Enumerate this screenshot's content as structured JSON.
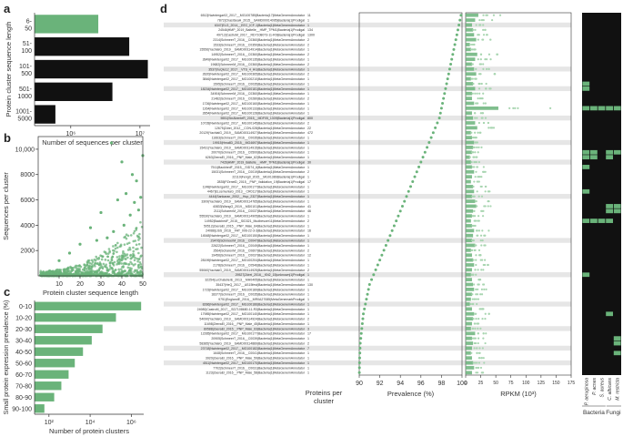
{
  "colors": {
    "green": "#6ab37a",
    "green_light": "#a8d5b0",
    "black": "#111111",
    "band": "#e6e6e6",
    "axis": "#333333",
    "text": "#333333"
  },
  "panels": {
    "a": "a",
    "b": "b",
    "c": "c",
    "d": "d"
  },
  "chart_data": [
    {
      "id": "a",
      "type": "bar",
      "orientation": "horizontal",
      "xscale": "log",
      "categories": [
        "6-50",
        "51-100",
        "101-500",
        "501-1000",
        "1001-5000"
      ],
      "category_lines": [
        [
          "6-",
          "50"
        ],
        [
          "51-",
          "100"
        ],
        [
          "101-",
          "500"
        ],
        [
          "501-",
          "1000"
        ],
        [
          "1001-",
          "5000"
        ]
      ],
      "values": [
        2500000,
        7000000,
        13000000,
        4000000,
        600000
      ],
      "bar_colors": [
        "#6ab37a",
        "#111111",
        "#111111",
        "#111111",
        "#111111"
      ],
      "xlim": [
        300000,
        14000000
      ],
      "xticks": [
        1000000,
        10000000
      ],
      "xtick_labels": [
        "10⁶",
        "10⁷"
      ],
      "xlabel": "Number of sequences per cluster",
      "ylabel": "Protein cluster sequence length"
    },
    {
      "id": "b",
      "type": "scatter",
      "xlim": [
        0,
        50
      ],
      "ylim": [
        0,
        11000
      ],
      "xticks": [
        10,
        20,
        30,
        40,
        50
      ],
      "yticks": [
        2000,
        4000,
        6000,
        8000,
        10000
      ],
      "ytick_labels": [
        "2000",
        "4000",
        "6000",
        "8000",
        "10,000"
      ],
      "xlabel": "Protein cluster sequence length",
      "ylabel": "Sequences per cluster",
      "sample_points": [
        [
          35,
          10500
        ],
        [
          40,
          9000
        ],
        [
          45,
          8000
        ],
        [
          47,
          7500
        ],
        [
          50,
          9500
        ],
        [
          42,
          6500
        ],
        [
          38,
          6000
        ],
        [
          30,
          5000
        ],
        [
          48,
          5200
        ],
        [
          44,
          4800
        ],
        [
          25,
          3800
        ],
        [
          49,
          6200
        ],
        [
          33,
          3000
        ],
        [
          20,
          2500
        ],
        [
          15,
          1800
        ],
        [
          10,
          1200
        ],
        [
          46,
          5800
        ],
        [
          41,
          4000
        ],
        [
          36,
          3500
        ],
        [
          28,
          2800
        ]
      ]
    },
    {
      "id": "c",
      "type": "bar",
      "orientation": "horizontal",
      "xscale": "log",
      "categories": [
        "0-10",
        "10-20",
        "20-30",
        "30-40",
        "40-50",
        "50-60",
        "60-70",
        "70-80",
        "80-90",
        "90-100"
      ],
      "values": [
        3000000,
        180000,
        40000,
        12000,
        4500,
        1800,
        900,
        400,
        180,
        60
      ],
      "xlim": [
        20,
        4000000
      ],
      "xticks": [
        100,
        10000,
        1000000
      ],
      "xtick_labels": [
        "10²",
        "10⁴",
        "10⁶"
      ],
      "xlabel": "Number of protein clusters",
      "ylabel": "Small protein expression prevalence (%)"
    },
    {
      "id": "d",
      "type": "scatter",
      "n_rows": 74,
      "banded_rows": [
        2,
        11,
        15,
        21,
        26,
        30,
        37,
        46,
        53,
        59,
        64,
        68,
        71
      ],
      "prevalence_xlim": [
        90,
        100
      ],
      "prevalence_xticks": [
        90,
        92,
        94,
        96,
        98,
        100
      ],
      "prevalence_label": "Prevalence (%)",
      "rpkm_xlim": [
        0,
        175
      ],
      "rpkm_xticks": [
        0,
        25,
        50,
        75,
        100,
        125,
        150,
        175
      ],
      "rpkm_label": "RPKM (10³)",
      "proteins_label": "Proteins per cluster",
      "proteins_label_lines": [
        "Proteins per",
        "cluster"
      ],
      "species": [
        "P. aeruginosa",
        "P. acnes",
        "S. aureus",
        "C. albicans",
        "M. restricta"
      ],
      "species_groups": [
        "Bacteria",
        "Fungi"
      ],
      "row_labels": [
        "6512|Nwintergar02_2017__MG100785|Bacteria|17|MetaGenemAnnotator",
        "7872|ChasiSeaH_2015__SAMD00014095|Bacteria|1|Prodigal",
        "6347|ELG_2014__EEC_ICF-1|Bacteria|1|MetaGenemAnnotator",
        "24546|HMP_2019_Baltelle__HMP_TPM1|Bacteria|1|Prodigal",
        "49712|CastroM_2017__RD7108073-11-R0|Bacteria|1|Prodigal",
        "2314|SchmeerT_2016__C0360|Bacteria|1|MetaGenemAnnotator",
        "1533|SchmeerT_2016__C0350|Bacteria|1|MetaGenemAnnotator",
        "15556|YachiaiG_2019__SAMD00114914|Bacteria|1|MetaGenemAnnotator",
        "14952|SchmeerT_2016__C0360|Bacteria|1|MetaGenemAnnotator",
        "2849|Nwintergar02_2017__MG100135|Bacteria|1|MetaGenemAnnotator",
        "19682|SchmeerM_2016__C0360|Bacteria|1|MetaGenemAnnotator",
        "3537|XuQie12_2017__VTS_4_HG|Bacteria|1|MetaGenemAnnotator",
        "2820|Nwintergar02_2017__MG100365|Bacteria|1|MetaGenemAnnotator",
        "3846|Nwintergar02_2017__MG100210|Bacteria|1|MetaGenemAnnotator",
        "1595|SchmeerT_2016__C0035|Bacteria|1|MetaGenemAnnotator",
        "18234|Nwintergar02_2017__MG100181|Bacteria|1|MetaGenemAnnotator",
        "34904|SchmeerM_2016__C0360|Bacteria|1|MetaGenemAnnotator",
        "21482|SchmeerT_2016__C0280|Bacteria|1|MetaGenemAnnotator",
        "1726|Nwintergar02_2017__MG100160|Bacteria|1|MetaGenemAnnotator",
        "1264|Nwintergar02_2017__MG100133|Bacteria|1|MetaGenemAnnotator",
        "2854|Nwintergar02_2017__MG100128|Bacteria|1|MetaGenemAnnotator",
        "5551|SinAbenteR_2015__MDF05_1309|Bacteria|1|Prodigal",
        "10728|Nwintergar02_2017__MG100145|Bacteria|1|MetaGenemAnnotator",
        "12675|Zdrei_2012__CON-028|Bacteria|1|MetaGenemAnnotator",
        "20129|YachiaiG_2019__SAMD00114927|Bacteria|1|MetaGenemAnnotator",
        "11663|SchmeerT_2016__C0035|Bacteria|1|MetaGenemAnnotator",
        "19915|HmallD_2015__MG4697|Bacteria|1|MetaGenemAnnotator",
        "15431|YachiaiG_2019__SAMD00114915|Bacteria|1|MetaGenemAnnotator",
        "20070|SchmeerT_2016__C0500|Bacteria|1|MetaGenemAnnotator",
        "6263|ZeeraEl_2016__PNP_Male_62|Bacteria|1|MetaGenemAnnotator",
        "7426|HMP_2019_Baltelle__HMP_TPM1|Bacteria|1|Prodigal",
        "7511|BackhedF_2015__SID74_6|Bacteria|1|MetaGenemAnnotator",
        "15031|SchmeerT_2016__C0019|Bacteria|1|MetaGenemAnnotator",
        "22119|Feng0_2015__MG01389|Bacteria|1|Prodigal",
        "2835|PZeneiD_2015__PNP_Validation_19|Bacteria|1|Prodigal",
        "1248|Nwintergar02_2017__MG100177|Bacteria|1|MetaGenemAnnotator",
        "4467|ELcemuniaG_2013__CR0117|Bacteria|1|MetaGenemAnnotator",
        "4444|Sankaran_2002__Hup_2327|Bacteria|1|MetaGenemAnnotator",
        "3309|YachiaiG_2019__SAMD00114765|Bacteria|1|MetaGenemAnnotator",
        "40833|WangG_2019__MD0101|Bacteria|1|MetaGenemAnnotator",
        "2111|ScharenM_2016__C0037|Bacteria|1|MetaGenemAnnotator",
        "55530|YachiaiG_2019__SAMD00114905|Bacteria|1|MetaGenemAnnotator",
        "14952|BackhedF_2015__SID321_Mudbesoer11|MetaGenemAnnotator",
        "50512|ZeeraEl_2015__PNP_Male_64|Bacteria|1|MetaGenemAnnotator",
        "24088|LiSS_2016__FAT_006-22-3-3|Bacteria|1|MetaGenemAnnotator",
        "14548|Nwintergar02_2017__MG100150|Bacteria|1|MetaGenemAnnotator",
        "29476|SchmeerM_2016__C0047|Bacteria|1|MetaGenemAnnotator",
        "22622|SchmeerT_2016__C0049|Bacteria|1|MetaGenemAnnotator",
        "2564|ScharenM_2016__C0607|Bacteria|1|MetaGenemAnnotator",
        "19456|SchmeerT_2016__C0037|Bacteria|1|MetaGenemAnnotator",
        "28199|Nwintergar02_2017__MG100204|Bacteria|1|MetaGenemAnnotator",
        "2178|SchmeerT_2016__C0546|Bacteria|1|MetaGenemAnnotator",
        "55060|YachiaiG_2019__SAMD00114925|Bacteria|1|MetaGenemAnnotator",
        "29527|Zdrei_2016__KN2_15|unknown|1|Prodigal",
        "32254|LeChatelierE_2013__MH0405|Bacteria|1|MetaGenemAnnotator",
        "35437|HeQ_2017__AS15fest|Bacteria|1|MetaGenemAnnotator",
        "1723|Nwintergar02_2017__MG100189|Bacteria|1|MetaGenemAnnotator",
        "18377|SchmeerT_2016__C0035|Bacteria|1|MetaGenemAnnotator",
        "9751|EnglandE_2016__MR0A27085|MetaGenemarkProdigal",
        "8286|Nwintergar02_2017__MG100186|Bacteria|1|MetaGenemAnnotator",
        "24980|CastroM_2017__SD7108680-11-R3|Bacteria|1|MetaGenemAnnotator",
        "17985|Nwintergar02_2017__MG100140|Bacteria|1|MetaGenemAnnotator",
        "54090|YachiaiG_2019__SAMD00114924|Bacteria|1|MetaGenemAnnotator",
        "11698|ZeeraEl_2016__PNP_Male_45|Bacteria|1|MetaGenemAnnotator",
        "89588|ZeeraEl_2015__PNP_Male_63|Bacteria|1|MetaGenemAnnotator",
        "12285|Nwintergar02_2017__MG100177|Bacteria|1|MetaGenemAnnotator",
        "20905|SchmeerT_2016__C0039|Bacteria|1|MetaGenemAnnotator",
        "58385|YachiaiG_2019__SAMD00114889|Bacteria|1|MetaGenemAnnotator",
        "23718|Nwintergar02_2017__MG100182|Bacteria|1|MetaGenemAnnotator",
        "1648|SchmeerT_2016__C0041|Bacteria|1|MetaGenemAnnotator",
        "3920|ZeeraEl_2016__PNP_Male_59|Bacteria|1|MetaGenemAnnotator",
        "4511|Nwintergar02_2017__MG100170|Bacteria|1|MetaGenemAnnotator",
        "7702|SchmeerT_2016__C0031|Bacteria|1|MetaGenemAnnotator",
        "1123|ZeeraEl_2016__PNP_Male_58|Bacteria|1|MetaGenemAnnotator"
      ],
      "proteins_per_cluster": [
        11,
        1,
        1,
        134,
        1300,
        2,
        2,
        1,
        2,
        1,
        2,
        1,
        2,
        1,
        1,
        1,
        1,
        2,
        1,
        1,
        1,
        800,
        2,
        22,
        472,
        1,
        1,
        1,
        1,
        1,
        30,
        1,
        2,
        1,
        17,
        1,
        1,
        1,
        1,
        41,
        46,
        1,
        2,
        1,
        16,
        1,
        1,
        1,
        2,
        12,
        1,
        1,
        2,
        1,
        1,
        130,
        1,
        1,
        1,
        1,
        1,
        1,
        2,
        1,
        3,
        17,
        1,
        2,
        7,
        1,
        1,
        1,
        1,
        1
      ],
      "prevalence": [
        99.9,
        99.8,
        99.7,
        99.6,
        99.5,
        99.4,
        99.3,
        99.2,
        99.1,
        99.0,
        98.9,
        98.8,
        98.7,
        98.6,
        98.5,
        98.4,
        98.3,
        98.2,
        98.1,
        98.0,
        97.9,
        97.8,
        97.6,
        97.4,
        97.2,
        97.0,
        96.8,
        96.6,
        96.4,
        96.2,
        96.0,
        95.8,
        95.6,
        95.4,
        95.2,
        95.0,
        94.8,
        94.6,
        94.4,
        94.2,
        94.0,
        93.8,
        93.6,
        93.4,
        93.2,
        93.0,
        92.8,
        92.6,
        92.4,
        92.2,
        92.0,
        91.8,
        91.6,
        91.4,
        91.2,
        91.0,
        90.9,
        90.8,
        90.7,
        90.6,
        90.5,
        90.4,
        90.35,
        90.3,
        90.25,
        90.2,
        90.15,
        90.1,
        90.08,
        90.06,
        90.04,
        90.03,
        90.02,
        90.01
      ],
      "rpkm_max": [
        60,
        45,
        30,
        35,
        40,
        50,
        20,
        25,
        55,
        45,
        30,
        40,
        50,
        25,
        35,
        45,
        30,
        30,
        40,
        155,
        30,
        35,
        45,
        55,
        25,
        30,
        40,
        35,
        30,
        20,
        25,
        30,
        40,
        30,
        25,
        35,
        40,
        30,
        45,
        50,
        35,
        30,
        25,
        30,
        40,
        35,
        30,
        45,
        25,
        30,
        35,
        40,
        30,
        25,
        30,
        35,
        40,
        30,
        25,
        20,
        30,
        40,
        35,
        30,
        25,
        45,
        30,
        35,
        30,
        25,
        30,
        35,
        40,
        30
      ],
      "presence": [
        [
          0,
          0,
          0,
          0,
          0
        ],
        [
          0,
          0,
          0,
          0,
          0
        ],
        [
          0,
          0,
          0,
          0,
          0
        ],
        [
          0,
          0,
          0,
          0,
          0
        ],
        [
          0,
          0,
          0,
          0,
          0
        ],
        [
          0,
          0,
          0,
          0,
          0
        ],
        [
          0,
          0,
          0,
          0,
          0
        ],
        [
          0,
          0,
          0,
          0,
          0
        ],
        [
          0,
          0,
          0,
          0,
          0
        ],
        [
          0,
          0,
          0,
          0,
          0
        ],
        [
          0,
          0,
          0,
          0,
          0
        ],
        [
          0,
          0,
          0,
          0,
          0
        ],
        [
          0,
          0,
          0,
          0,
          0
        ],
        [
          0,
          0,
          0,
          0,
          0
        ],
        [
          1,
          0,
          0,
          0,
          0
        ],
        [
          1,
          0,
          0,
          0,
          0
        ],
        [
          0,
          0,
          0,
          0,
          0
        ],
        [
          0,
          0,
          0,
          0,
          0
        ],
        [
          0,
          0,
          0,
          0,
          0
        ],
        [
          1,
          1,
          1,
          1,
          1
        ],
        [
          0,
          0,
          0,
          0,
          0
        ],
        [
          0,
          0,
          0,
          0,
          0
        ],
        [
          0,
          0,
          0,
          0,
          0
        ],
        [
          0,
          0,
          0,
          0,
          0
        ],
        [
          0,
          0,
          0,
          0,
          0
        ],
        [
          0,
          0,
          0,
          0,
          0
        ],
        [
          0,
          0,
          0,
          0,
          0
        ],
        [
          0,
          0,
          0,
          0,
          0
        ],
        [
          1,
          1,
          0,
          1,
          1
        ],
        [
          1,
          1,
          0,
          1,
          0
        ],
        [
          0,
          0,
          0,
          0,
          0
        ],
        [
          1,
          0,
          0,
          0,
          0
        ],
        [
          0,
          0,
          0,
          0,
          0
        ],
        [
          0,
          0,
          0,
          0,
          0
        ],
        [
          0,
          0,
          0,
          0,
          0
        ],
        [
          0,
          0,
          0,
          0,
          0
        ],
        [
          1,
          0,
          0,
          0,
          0
        ],
        [
          0,
          0,
          0,
          0,
          0
        ],
        [
          0,
          0,
          0,
          0,
          0
        ],
        [
          0,
          0,
          0,
          1,
          1
        ],
        [
          0,
          0,
          0,
          1,
          1
        ],
        [
          0,
          0,
          0,
          0,
          0
        ],
        [
          1,
          1,
          1,
          1,
          0
        ],
        [
          0,
          0,
          0,
          0,
          0
        ],
        [
          0,
          0,
          0,
          0,
          0
        ],
        [
          0,
          0,
          0,
          0,
          0
        ],
        [
          0,
          0,
          0,
          0,
          0
        ],
        [
          0,
          0,
          0,
          0,
          0
        ],
        [
          0,
          0,
          0,
          0,
          0
        ],
        [
          0,
          0,
          0,
          0,
          0
        ],
        [
          0,
          0,
          0,
          0,
          0
        ],
        [
          0,
          0,
          0,
          0,
          0
        ],
        [
          0,
          0,
          0,
          0,
          0
        ],
        [
          1,
          0,
          0,
          0,
          0
        ],
        [
          0,
          0,
          0,
          0,
          0
        ],
        [
          0,
          0,
          0,
          0,
          0
        ],
        [
          0,
          0,
          0,
          0,
          0
        ],
        [
          0,
          0,
          0,
          0,
          0
        ],
        [
          0,
          0,
          0,
          0,
          0
        ],
        [
          0,
          0,
          0,
          0,
          0
        ],
        [
          0,
          0,
          0,
          0,
          0
        ],
        [
          0,
          0,
          0,
          1,
          0
        ],
        [
          0,
          0,
          0,
          0,
          0
        ],
        [
          0,
          0,
          0,
          0,
          0
        ],
        [
          0,
          0,
          0,
          0,
          0
        ],
        [
          0,
          0,
          0,
          0,
          0
        ],
        [
          0,
          0,
          0,
          0,
          1
        ],
        [
          0,
          0,
          0,
          0,
          1
        ],
        [
          0,
          0,
          0,
          0,
          0
        ],
        [
          0,
          0,
          0,
          0,
          1
        ],
        [
          0,
          0,
          0,
          0,
          0
        ],
        [
          0,
          0,
          0,
          0,
          0
        ],
        [
          0,
          0,
          0,
          0,
          0
        ],
        [
          0,
          0,
          0,
          0,
          0
        ]
      ]
    }
  ]
}
